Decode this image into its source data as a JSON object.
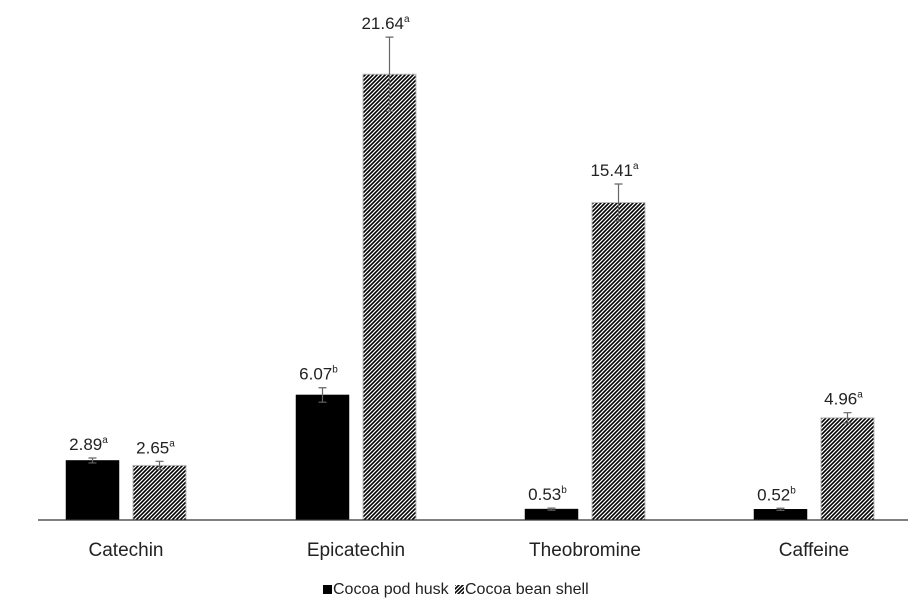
{
  "chart_data": {
    "type": "bar",
    "categories": [
      "Catechin",
      "Epicatechin",
      "Theobromine",
      "Caffeine"
    ],
    "series": [
      {
        "name": "Cocoa pod husk",
        "values": [
          2.89,
          6.07,
          0.53,
          0.52
        ],
        "errors": [
          0.12,
          0.35,
          0.05,
          0.05
        ],
        "superscripts": [
          "a",
          "b",
          "b",
          "b"
        ],
        "labels": [
          "2.89",
          "6.07",
          "0.53",
          "0.52"
        ],
        "fill": "#000000"
      },
      {
        "name": "Cocoa bean shell",
        "values": [
          2.65,
          21.64,
          15.41,
          4.96
        ],
        "errors": [
          0.2,
          1.8,
          0.9,
          0.25
        ],
        "superscripts": [
          "a",
          "a",
          "a",
          "a"
        ],
        "labels": [
          "2.65",
          "21.64",
          "15.41",
          "4.96"
        ],
        "fill": "hatch"
      }
    ],
    "ylim": [
      0,
      24
    ],
    "grid": false,
    "legend": "bottom-center"
  }
}
